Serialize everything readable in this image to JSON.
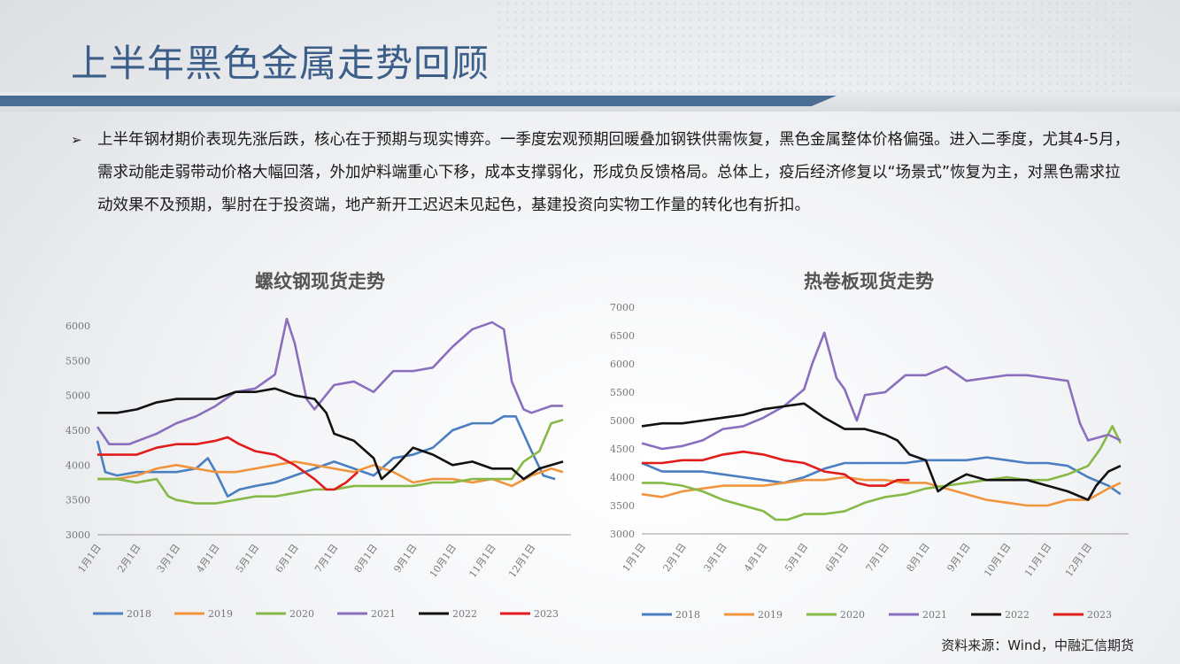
{
  "page": {
    "title": "上半年黑色金属走势回顾",
    "bullet_icon": "arrow-right-icon",
    "paragraph": "上半年钢材期价表现先涨后跌，核心在于预期与现实博弈。一季度宏观预期回暖叠加钢铁供需恢复，黑色金属整体价格偏强。进入二季度，尤其4-5月，需求动能走弱带动价格大幅回落，外加炉料端重心下移，成本支撑弱化，形成负反馈格局。总体上，疫后经济修复以“场景式”恢复为主，对黑色需求拉动效果不及预期，掣肘在于投资端，地产新开工迟迟未见起色，基建投资向实物工作量的转化也有折扣。",
    "source": "资料来源：Wind，中融汇信期货",
    "colors": {
      "title": "#3c5f8a",
      "bar": "#4a6d96"
    }
  },
  "chart_data": [
    {
      "type": "line",
      "title": "螺纹钢现货走势",
      "xlabel": "",
      "ylabel": "",
      "ylim": [
        3000,
        6000
      ],
      "yticks": [
        "3000",
        "3500",
        "4000",
        "4500",
        "5000",
        "5500",
        "6000"
      ],
      "xticks": [
        "1月1日",
        "2月1日",
        "3月1日",
        "4月1日",
        "5月1日",
        "6月1日",
        "7月1日",
        "8月1日",
        "9月1日",
        "10月1日",
        "11月1日",
        "12月1日"
      ],
      "legend_position": "bottom",
      "series": [
        {
          "name": "2018",
          "color": "#4a7fc1",
          "x": [
            0,
            0.2,
            0.5,
            1,
            1.5,
            2,
            2.5,
            2.8,
            3,
            3.3,
            3.6,
            4,
            4.5,
            5,
            5.5,
            6,
            6.5,
            7,
            7.5,
            8,
            8.5,
            9,
            9.5,
            10,
            10.3,
            10.6,
            11,
            11.3,
            11.6
          ],
          "y": [
            4350,
            3900,
            3850,
            3900,
            3900,
            3900,
            3950,
            4100,
            3900,
            3550,
            3650,
            3700,
            3750,
            3850,
            3950,
            4050,
            3950,
            3850,
            4100,
            4150,
            4250,
            4500,
            4600,
            4600,
            4700,
            4700,
            4200,
            3850,
            3800
          ]
        },
        {
          "name": "2019",
          "color": "#f0953d",
          "x": [
            0,
            0.5,
            1,
            1.5,
            2,
            2.5,
            3,
            3.5,
            4,
            4.5,
            5,
            5.5,
            6,
            6.5,
            7,
            7.5,
            8,
            8.5,
            9,
            9.5,
            10,
            10.5,
            11,
            11.5,
            11.8
          ],
          "y": [
            3800,
            3800,
            3850,
            3950,
            4000,
            3950,
            3900,
            3900,
            3950,
            4000,
            4050,
            4000,
            3950,
            3900,
            4000,
            3900,
            3750,
            3800,
            3800,
            3750,
            3800,
            3700,
            3850,
            3950,
            3900
          ]
        },
        {
          "name": "2020",
          "color": "#86b947",
          "x": [
            0,
            0.5,
            1,
            1.5,
            1.8,
            2,
            2.5,
            3,
            3.5,
            4,
            4.5,
            5,
            5.5,
            6,
            6.5,
            7,
            7.5,
            8,
            8.5,
            9,
            9.5,
            10,
            10.5,
            10.8,
            11.2,
            11.5,
            11.8
          ],
          "y": [
            3800,
            3800,
            3750,
            3800,
            3550,
            3500,
            3450,
            3450,
            3500,
            3550,
            3550,
            3600,
            3650,
            3650,
            3700,
            3700,
            3700,
            3700,
            3750,
            3750,
            3800,
            3800,
            3800,
            4050,
            4200,
            4600,
            4650
          ]
        },
        {
          "name": "2021",
          "color": "#8a6fbf",
          "x": [
            0,
            0.3,
            0.8,
            1.5,
            2,
            2.5,
            3,
            3.5,
            4,
            4.5,
            4.8,
            5,
            5.3,
            5.5,
            6,
            6.5,
            7,
            7.5,
            8,
            8.5,
            9,
            9.5,
            10,
            10.3,
            10.5,
            10.8,
            11,
            11.5,
            11.8
          ],
          "y": [
            4550,
            4300,
            4300,
            4450,
            4600,
            4700,
            4850,
            5050,
            5100,
            5300,
            6100,
            5750,
            4950,
            4800,
            5150,
            5200,
            5050,
            5350,
            5350,
            5400,
            5700,
            5950,
            6050,
            5950,
            5200,
            4800,
            4750,
            4850,
            4850
          ]
        },
        {
          "name": "2022",
          "color": "#111111",
          "x": [
            0,
            0.5,
            1,
            1.5,
            2,
            2.5,
            3,
            3.5,
            4,
            4.5,
            5,
            5.5,
            5.8,
            6,
            6.5,
            7,
            7.2,
            7.5,
            8,
            8.5,
            9,
            9.5,
            10,
            10.5,
            10.8,
            11.2,
            11.8
          ],
          "y": [
            4750,
            4750,
            4800,
            4900,
            4950,
            4950,
            4950,
            5050,
            5050,
            5100,
            5000,
            4950,
            4750,
            4450,
            4350,
            4100,
            3800,
            3950,
            4250,
            4150,
            4000,
            4050,
            3950,
            3950,
            3800,
            3950,
            4050
          ]
        },
        {
          "name": "2023",
          "color": "#e21b1b",
          "x": [
            0,
            0.5,
            1,
            1.5,
            2,
            2.5,
            3,
            3.3,
            3.6,
            4,
            4.5,
            5,
            5.5,
            5.8,
            6,
            6.3,
            6.6
          ],
          "y": [
            4150,
            4150,
            4150,
            4250,
            4300,
            4300,
            4350,
            4400,
            4300,
            4200,
            4150,
            4000,
            3800,
            3650,
            3650,
            3750,
            3900
          ]
        }
      ]
    },
    {
      "type": "line",
      "title": "热卷板现货走势",
      "xlabel": "",
      "ylabel": "",
      "ylim": [
        3000,
        7000
      ],
      "yticks": [
        "3000",
        "3500",
        "4000",
        "4500",
        "5000",
        "5500",
        "6000",
        "6500",
        "7000"
      ],
      "xticks": [
        "1月1日",
        "2月1日",
        "3月1日",
        "4月1日",
        "5月1日",
        "6月1日",
        "7月1日",
        "8月1日",
        "9月1日",
        "10月1日",
        "11月1日",
        "12月1日"
      ],
      "legend_position": "bottom",
      "series": [
        {
          "name": "2018",
          "color": "#4a7fc1",
          "x": [
            0,
            0.5,
            1,
            1.5,
            2,
            2.5,
            3,
            3.5,
            4,
            4.5,
            5,
            5.5,
            6,
            6.5,
            7,
            7.5,
            8,
            8.5,
            9,
            9.5,
            10,
            10.5,
            11,
            11.5,
            11.8
          ],
          "y": [
            4250,
            4100,
            4100,
            4100,
            4050,
            4000,
            3950,
            3900,
            4000,
            4150,
            4250,
            4250,
            4250,
            4250,
            4300,
            4300,
            4300,
            4350,
            4300,
            4250,
            4250,
            4200,
            4000,
            3850,
            3700
          ]
        },
        {
          "name": "2019",
          "color": "#f0953d",
          "x": [
            0,
            0.5,
            1,
            1.5,
            2,
            2.5,
            3,
            3.5,
            4,
            4.5,
            5,
            5.5,
            6,
            6.5,
            7,
            7.5,
            8,
            8.5,
            9,
            9.5,
            10,
            10.5,
            11,
            11.5,
            11.8
          ],
          "y": [
            3700,
            3650,
            3750,
            3800,
            3850,
            3850,
            3850,
            3900,
            3950,
            3950,
            4000,
            3950,
            3950,
            3900,
            3900,
            3800,
            3700,
            3600,
            3550,
            3500,
            3500,
            3600,
            3600,
            3800,
            3900
          ]
        },
        {
          "name": "2020",
          "color": "#86b947",
          "x": [
            0,
            0.5,
            1,
            1.5,
            2,
            2.5,
            3,
            3.3,
            3.6,
            4,
            4.5,
            5,
            5.5,
            6,
            6.5,
            7,
            7.5,
            8,
            8.5,
            9,
            9.5,
            10,
            10.5,
            11,
            11.3,
            11.6,
            11.8
          ],
          "y": [
            3900,
            3900,
            3850,
            3750,
            3600,
            3500,
            3400,
            3250,
            3250,
            3350,
            3350,
            3400,
            3550,
            3650,
            3700,
            3800,
            3850,
            3900,
            3950,
            4000,
            3950,
            3950,
            4050,
            4200,
            4500,
            4900,
            4600
          ]
        },
        {
          "name": "2021",
          "color": "#8a6fbf",
          "x": [
            0,
            0.5,
            1,
            1.5,
            2,
            2.5,
            3,
            3.5,
            4,
            4.2,
            4.5,
            4.8,
            5,
            5.3,
            5.5,
            6,
            6.5,
            7,
            7.5,
            8,
            8.5,
            9,
            9.5,
            10,
            10.5,
            10.8,
            11,
            11.5,
            11.8
          ],
          "y": [
            4600,
            4500,
            4550,
            4650,
            4850,
            4900,
            5050,
            5250,
            5550,
            6000,
            6550,
            5750,
            5550,
            5000,
            5450,
            5500,
            5800,
            5800,
            5950,
            5700,
            5750,
            5800,
            5800,
            5750,
            5700,
            4950,
            4650,
            4750,
            4650
          ]
        },
        {
          "name": "2022",
          "color": "#111111",
          "x": [
            0,
            0.5,
            1,
            1.5,
            2,
            2.5,
            3,
            3.5,
            4,
            4.5,
            5,
            5.5,
            6,
            6.3,
            6.6,
            7,
            7.3,
            7.6,
            8,
            8.5,
            9,
            9.5,
            10,
            10.5,
            11,
            11.2,
            11.5,
            11.8
          ],
          "y": [
            4900,
            4950,
            4950,
            5000,
            5050,
            5100,
            5200,
            5250,
            5300,
            5050,
            4850,
            4850,
            4750,
            4650,
            4400,
            4300,
            3750,
            3900,
            4050,
            3950,
            3950,
            3950,
            3850,
            3750,
            3600,
            3850,
            4100,
            4200
          ]
        },
        {
          "name": "2023",
          "color": "#e21b1b",
          "x": [
            0,
            0.5,
            1,
            1.5,
            2,
            2.5,
            3,
            3.5,
            4,
            4.5,
            5,
            5.3,
            5.6,
            6,
            6.3,
            6.6
          ],
          "y": [
            4250,
            4250,
            4300,
            4300,
            4400,
            4450,
            4400,
            4300,
            4250,
            4100,
            4050,
            3900,
            3850,
            3850,
            3950,
            3950
          ]
        }
      ]
    }
  ]
}
